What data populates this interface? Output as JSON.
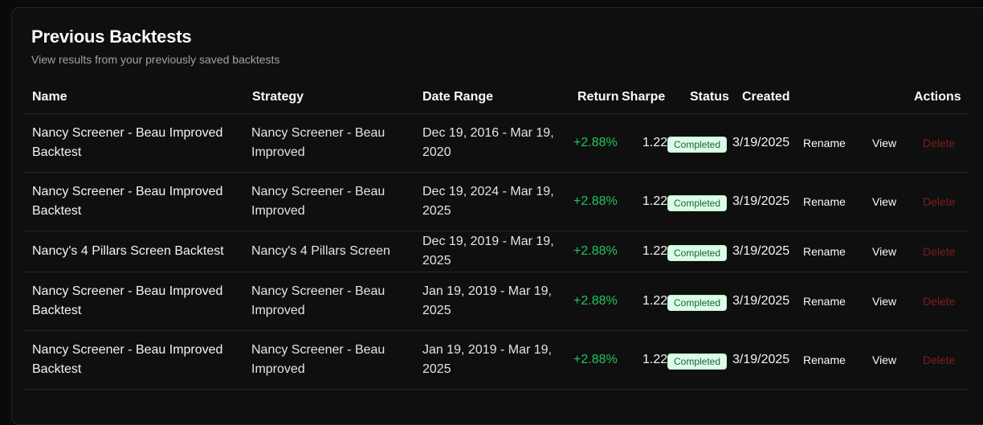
{
  "page": {
    "title": "Previous Backtests",
    "subtitle": "View results from your previously saved backtests"
  },
  "table": {
    "headers": {
      "name": "Name",
      "strategy": "Strategy",
      "date_range": "Date Range",
      "return": "Return",
      "sharpe": "Sharpe",
      "status": "Status",
      "created": "Created",
      "actions": "Actions"
    },
    "actions": {
      "rename": "Rename",
      "view": "View",
      "delete": "Delete"
    },
    "rows": [
      {
        "name_l1": "Nancy Screener - Beau Improved",
        "name_l2": "Backtest",
        "strategy_l1": "Nancy Screener - Beau",
        "strategy_l2": "Improved",
        "range_l1": "Dec 19, 2016 - Mar 19,",
        "range_l2": "2020",
        "return": "+2.88%",
        "sharpe": "1.22",
        "status": "Completed",
        "created": "3/19/2025"
      },
      {
        "name_l1": "Nancy Screener - Beau Improved",
        "name_l2": "Backtest",
        "strategy_l1": "Nancy Screener - Beau",
        "strategy_l2": "Improved",
        "range_l1": "Dec 19, 2024 - Mar 19,",
        "range_l2": "2025",
        "return": "+2.88%",
        "sharpe": "1.22",
        "status": "Completed",
        "created": "3/19/2025"
      },
      {
        "name_l1": "Nancy's 4 Pillars Screen Backtest",
        "name_l2": "",
        "strategy_l1": "Nancy's 4 Pillars Screen",
        "strategy_l2": "",
        "range_l1": "Dec 19, 2019 - Mar 19,",
        "range_l2": "2025",
        "return": "+2.88%",
        "sharpe": "1.22",
        "status": "Completed",
        "created": "3/19/2025"
      },
      {
        "name_l1": "Nancy Screener - Beau Improved",
        "name_l2": "Backtest",
        "strategy_l1": "Nancy Screener - Beau",
        "strategy_l2": "Improved",
        "range_l1": "Jan 19, 2019 - Mar 19,",
        "range_l2": "2025",
        "return": "+2.88%",
        "sharpe": "1.22",
        "status": "Completed",
        "created": "3/19/2025"
      },
      {
        "name_l1": "Nancy Screener - Beau Improved",
        "name_l2": "Backtest",
        "strategy_l1": "Nancy Screener - Beau",
        "strategy_l2": "Improved",
        "range_l1": "Jan 19, 2019 - Mar 19,",
        "range_l2": "2025",
        "return": "+2.88%",
        "sharpe": "1.22",
        "status": "Completed",
        "created": "3/19/2025"
      }
    ]
  }
}
